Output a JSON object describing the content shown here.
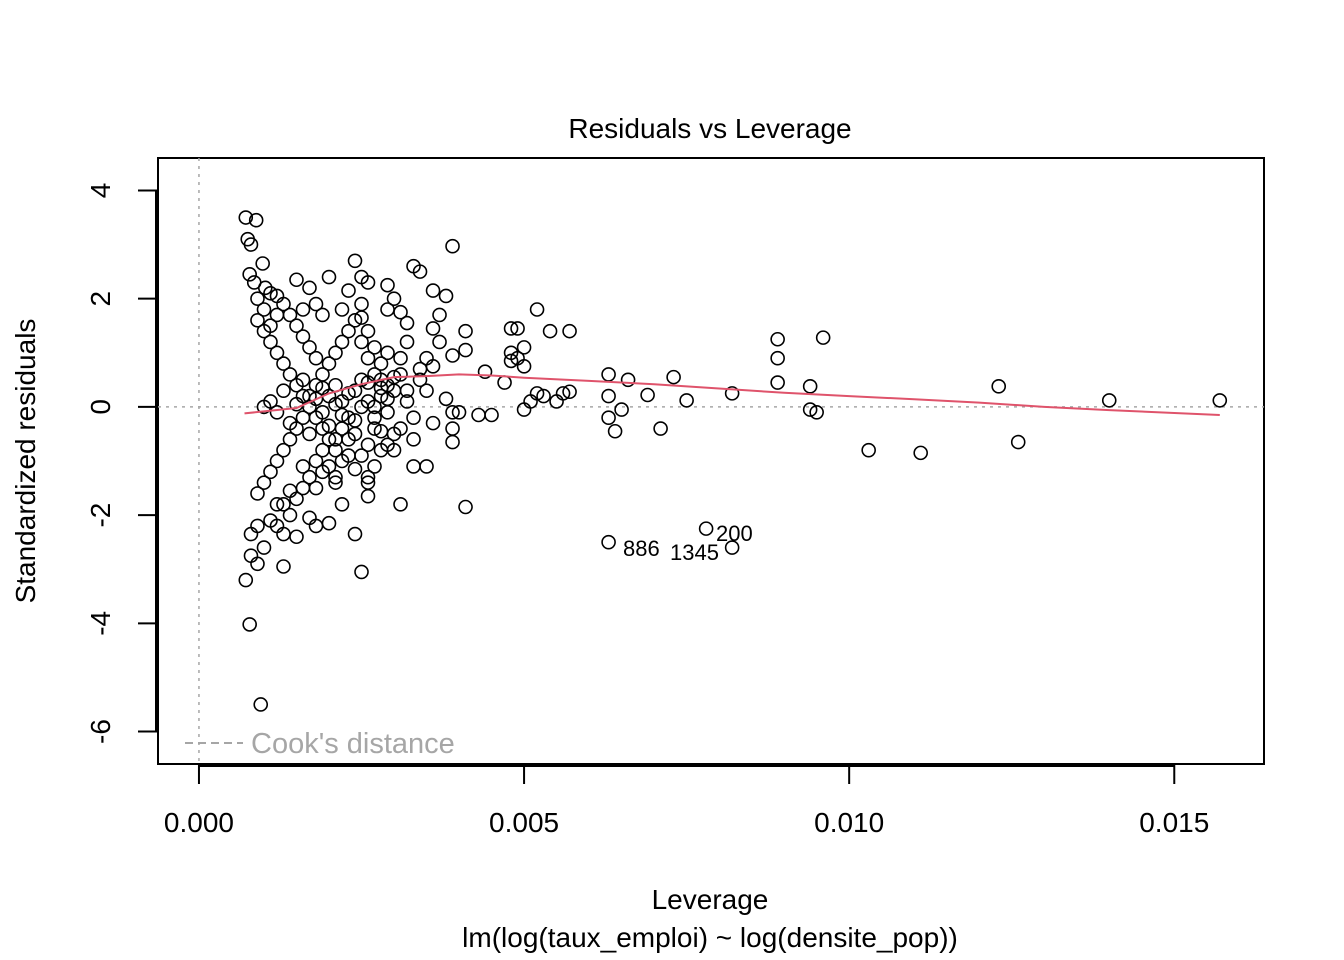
{
  "chart_data": {
    "type": "scatter",
    "title": "Residuals vs Leverage",
    "xlabel": "Leverage",
    "subtitle": "lm(log(taux_emploi) ~ log(densite_pop))",
    "ylabel": "Standardized residuals",
    "xlim": [
      -0.00063,
      0.01638
    ],
    "ylim": [
      -6.6,
      4.6
    ],
    "x_ticks": [
      0.0,
      0.005,
      0.01,
      0.015
    ],
    "x_tick_labels": [
      "0.000",
      "0.005",
      "0.010",
      "0.015"
    ],
    "y_ticks": [
      4,
      2,
      0,
      -2,
      -4,
      -6
    ],
    "y_tick_labels": [
      "4",
      "2",
      "0",
      "-2",
      "-4",
      "-6"
    ],
    "reference_lines": {
      "h": 0,
      "v": 0
    },
    "legend": {
      "label": "Cook's distance",
      "position": "bottom-left"
    },
    "colors": {
      "points": "#000000",
      "smoother": "#DF536B",
      "reference": "#a6a6a6"
    },
    "series": [
      {
        "points": [
          [
            0.00072,
            3.5
          ],
          [
            0.00088,
            3.45
          ],
          [
            0.00075,
            3.1
          ],
          [
            0.0008,
            3.0
          ],
          [
            0.00098,
            2.65
          ],
          [
            0.00078,
            2.45
          ],
          [
            0.00085,
            2.3
          ],
          [
            0.00102,
            2.2
          ],
          [
            0.0011,
            2.1
          ],
          [
            0.0012,
            2.05
          ],
          [
            0.0015,
            2.35
          ],
          [
            0.0017,
            2.2
          ],
          [
            0.002,
            2.4
          ],
          [
            0.0024,
            2.7
          ],
          [
            0.0025,
            2.4
          ],
          [
            0.0026,
            2.3
          ],
          [
            0.0029,
            2.25
          ],
          [
            0.003,
            2.0
          ],
          [
            0.0033,
            2.6
          ],
          [
            0.0034,
            2.5
          ],
          [
            0.0036,
            2.15
          ],
          [
            0.0038,
            2.05
          ],
          [
            0.0039,
            2.97
          ],
          [
            0.0023,
            2.15
          ],
          [
            0.0018,
            1.9
          ],
          [
            0.0016,
            1.8
          ],
          [
            0.0019,
            1.7
          ],
          [
            0.0022,
            1.8
          ],
          [
            0.0025,
            1.65
          ],
          [
            0.0029,
            1.8
          ],
          [
            0.0031,
            1.75
          ],
          [
            0.0032,
            1.55
          ],
          [
            0.0037,
            1.7
          ],
          [
            0.0036,
            1.45
          ],
          [
            0.0041,
            1.4
          ],
          [
            0.0048,
            1.45
          ],
          [
            0.0049,
            1.45
          ],
          [
            0.0052,
            1.8
          ],
          [
            0.0054,
            1.4
          ],
          [
            0.0057,
            1.4
          ],
          [
            0.005,
            1.1
          ],
          [
            0.0048,
            1.0
          ],
          [
            0.0049,
            0.9
          ],
          [
            0.0048,
            0.85
          ],
          [
            0.005,
            0.75
          ],
          [
            0.0041,
            1.05
          ],
          [
            0.0039,
            0.95
          ],
          [
            0.0037,
            1.2
          ],
          [
            0.0035,
            0.9
          ],
          [
            0.0036,
            0.75
          ],
          [
            0.0044,
            0.65
          ],
          [
            0.0047,
            0.45
          ],
          [
            0.0034,
            0.5
          ],
          [
            0.003,
            0.55
          ],
          [
            0.0028,
            0.35
          ],
          [
            0.0032,
            0.3
          ],
          [
            0.0038,
            0.15
          ],
          [
            0.0039,
            -0.1
          ],
          [
            0.004,
            -0.1
          ],
          [
            0.0043,
            -0.15
          ],
          [
            0.0045,
            -0.15
          ],
          [
            0.005,
            -0.05
          ],
          [
            0.0051,
            0.1
          ],
          [
            0.0052,
            0.25
          ],
          [
            0.0053,
            0.2
          ],
          [
            0.0055,
            0.1
          ],
          [
            0.0056,
            0.25
          ],
          [
            0.0057,
            0.28
          ],
          [
            0.0063,
            0.6
          ],
          [
            0.0066,
            0.5
          ],
          [
            0.0063,
            0.2
          ],
          [
            0.0063,
            -0.2
          ],
          [
            0.0064,
            -0.45
          ],
          [
            0.0065,
            -0.05
          ],
          [
            0.0069,
            0.22
          ],
          [
            0.0071,
            -0.4
          ],
          [
            0.0073,
            0.55
          ],
          [
            0.0075,
            0.12
          ],
          [
            0.0082,
            0.25
          ],
          [
            0.0089,
            1.25
          ],
          [
            0.0089,
            0.9
          ],
          [
            0.0089,
            0.45
          ],
          [
            0.0094,
            0.38
          ],
          [
            0.0094,
            -0.05
          ],
          [
            0.0095,
            -0.1
          ],
          [
            0.0096,
            1.28
          ],
          [
            0.0103,
            -0.8
          ],
          [
            0.0111,
            -0.85
          ],
          [
            0.0123,
            0.38
          ],
          [
            0.0126,
            -0.65
          ],
          [
            0.014,
            0.12
          ],
          [
            0.0157,
            0.12
          ],
          [
            0.0039,
            -0.4
          ],
          [
            0.0039,
            -0.65
          ],
          [
            0.0035,
            -1.1
          ],
          [
            0.0033,
            -1.1
          ],
          [
            0.0031,
            -0.4
          ],
          [
            0.003,
            -0.8
          ],
          [
            0.0029,
            -0.7
          ],
          [
            0.0031,
            -1.8
          ],
          [
            0.0026,
            -1.4
          ],
          [
            0.0026,
            -1.65
          ],
          [
            0.0024,
            -2.35
          ],
          [
            0.0025,
            -3.05
          ],
          [
            0.002,
            -2.15
          ],
          [
            0.0018,
            -2.2
          ],
          [
            0.0017,
            -2.05
          ],
          [
            0.0015,
            -2.4
          ],
          [
            0.0013,
            -2.35
          ],
          [
            0.0012,
            -2.2
          ],
          [
            0.0011,
            -2.1
          ],
          [
            0.0009,
            -2.2
          ],
          [
            0.0008,
            -2.35
          ],
          [
            0.0008,
            -2.75
          ],
          [
            0.0009,
            -2.9
          ],
          [
            0.001,
            -2.6
          ],
          [
            0.0013,
            -2.95
          ],
          [
            0.00072,
            -3.2
          ],
          [
            0.00078,
            -4.02
          ],
          [
            0.00095,
            -5.5
          ],
          [
            0.0018,
            -1.5
          ],
          [
            0.0021,
            -1.4
          ],
          [
            0.0022,
            -1.8
          ],
          [
            0.0019,
            -1.2
          ],
          [
            0.0016,
            -1.1
          ],
          [
            0.0014,
            -1.55
          ],
          [
            0.0012,
            -1.8
          ],
          [
            0.0024,
            -1.15
          ],
          [
            0.0023,
            -0.9
          ],
          [
            0.0021,
            -0.6
          ],
          [
            0.0041,
            -1.85
          ],
          [
            0.0063,
            -2.5
          ],
          [
            0.0078,
            -2.25
          ],
          [
            0.0082,
            -2.6
          ],
          [
            0.0009,
            1.6
          ],
          [
            0.001,
            1.4
          ],
          [
            0.0011,
            1.2
          ],
          [
            0.0012,
            1.0
          ],
          [
            0.0013,
            0.8
          ],
          [
            0.0014,
            0.6
          ],
          [
            0.0015,
            0.4
          ],
          [
            0.0016,
            0.2
          ],
          [
            0.0017,
            0.0
          ],
          [
            0.0018,
            -0.2
          ],
          [
            0.0019,
            -0.4
          ],
          [
            0.002,
            -0.6
          ],
          [
            0.0021,
            -0.8
          ],
          [
            0.0022,
            -1.0
          ],
          [
            0.0009,
            -1.6
          ],
          [
            0.001,
            -1.4
          ],
          [
            0.0011,
            -1.2
          ],
          [
            0.0012,
            -1.0
          ],
          [
            0.0013,
            -0.8
          ],
          [
            0.0014,
            -0.6
          ],
          [
            0.0015,
            -0.4
          ],
          [
            0.0016,
            -0.2
          ],
          [
            0.0017,
            0.2
          ],
          [
            0.0018,
            0.4
          ],
          [
            0.0019,
            0.6
          ],
          [
            0.002,
            0.8
          ],
          [
            0.0021,
            1.0
          ],
          [
            0.0022,
            1.2
          ],
          [
            0.0023,
            1.4
          ],
          [
            0.0024,
            1.6
          ],
          [
            0.0025,
            1.2
          ],
          [
            0.0026,
            0.9
          ],
          [
            0.0027,
            0.6
          ],
          [
            0.0028,
            0.2
          ],
          [
            0.0029,
            -0.1
          ],
          [
            0.0027,
            -0.4
          ],
          [
            0.0026,
            -0.7
          ],
          [
            0.0025,
            -0.9
          ],
          [
            0.0024,
            -0.5
          ],
          [
            0.0023,
            -0.2
          ],
          [
            0.0022,
            0.1
          ],
          [
            0.0021,
            0.4
          ],
          [
            0.002,
            0.2
          ],
          [
            0.0019,
            -0.1
          ],
          [
            0.0018,
            0.9
          ],
          [
            0.0017,
            1.1
          ],
          [
            0.0016,
            1.3
          ],
          [
            0.0015,
            1.5
          ],
          [
            0.0014,
            1.7
          ],
          [
            0.0013,
            1.9
          ],
          [
            0.0012,
            1.7
          ],
          [
            0.0011,
            1.5
          ],
          [
            0.001,
            1.8
          ],
          [
            0.0009,
            2.0
          ],
          [
            0.0013,
            -1.8
          ],
          [
            0.0014,
            -2.0
          ],
          [
            0.0015,
            -1.7
          ],
          [
            0.0016,
            -1.5
          ],
          [
            0.0017,
            -1.3
          ],
          [
            0.0018,
            -1.0
          ],
          [
            0.0019,
            -0.8
          ],
          [
            0.002,
            -1.1
          ],
          [
            0.0021,
            -1.3
          ],
          [
            0.0022,
            -0.4
          ],
          [
            0.0023,
            -0.6
          ],
          [
            0.0024,
            0.3
          ],
          [
            0.0025,
            0.5
          ],
          [
            0.0026,
            0.1
          ],
          [
            0.0027,
            0.0
          ],
          [
            0.0028,
            0.8
          ],
          [
            0.0029,
            1.0
          ],
          [
            0.003,
            0.3
          ],
          [
            0.0031,
            0.6
          ],
          [
            0.0032,
            0.1
          ],
          [
            0.0033,
            -0.2
          ],
          [
            0.0034,
            0.7
          ],
          [
            0.0035,
            0.3
          ],
          [
            0.0036,
            -0.3
          ],
          [
            0.003,
            -0.5
          ],
          [
            0.0031,
            0.9
          ],
          [
            0.0032,
            1.2
          ],
          [
            0.0033,
            -0.6
          ],
          [
            0.0028,
            -0.8
          ],
          [
            0.0027,
            -1.1
          ],
          [
            0.0026,
            -1.3
          ],
          [
            0.0025,
            1.9
          ],
          [
            0.0026,
            1.4
          ],
          [
            0.0027,
            1.1
          ],
          [
            0.0028,
            0.5
          ],
          [
            0.0029,
            0.4
          ],
          [
            0.001,
            0.0
          ],
          [
            0.0011,
            0.1
          ],
          [
            0.0012,
            -0.1
          ],
          [
            0.0013,
            0.3
          ],
          [
            0.0014,
            -0.3
          ],
          [
            0.0015,
            0.05
          ],
          [
            0.0016,
            0.5
          ],
          [
            0.0017,
            -0.5
          ],
          [
            0.0018,
            0.15
          ],
          [
            0.0019,
            0.35
          ],
          [
            0.002,
            -0.35
          ],
          [
            0.0021,
            0.05
          ],
          [
            0.0022,
            -0.15
          ],
          [
            0.0023,
            0.25
          ],
          [
            0.0024,
            -0.25
          ],
          [
            0.0025,
            0.0
          ],
          [
            0.0026,
            0.45
          ],
          [
            0.0027,
            -0.2
          ],
          [
            0.0028,
            -0.45
          ],
          [
            0.0029,
            0.15
          ]
        ]
      }
    ],
    "smoother": {
      "x": [
        0.0007,
        0.0015,
        0.002,
        0.0025,
        0.003,
        0.0035,
        0.004,
        0.0045,
        0.005,
        0.006,
        0.007,
        0.008,
        0.009,
        0.01,
        0.011,
        0.012,
        0.013,
        0.014,
        0.0157
      ],
      "y": [
        -0.12,
        -0.02,
        0.25,
        0.42,
        0.55,
        0.57,
        0.6,
        0.58,
        0.54,
        0.48,
        0.42,
        0.34,
        0.26,
        0.2,
        0.14,
        0.08,
        0.0,
        -0.06,
        -0.15
      ]
    },
    "labeled_points": [
      {
        "label": "886"
      },
      {
        "label": "1345"
      },
      {
        "label": "200"
      }
    ]
  }
}
